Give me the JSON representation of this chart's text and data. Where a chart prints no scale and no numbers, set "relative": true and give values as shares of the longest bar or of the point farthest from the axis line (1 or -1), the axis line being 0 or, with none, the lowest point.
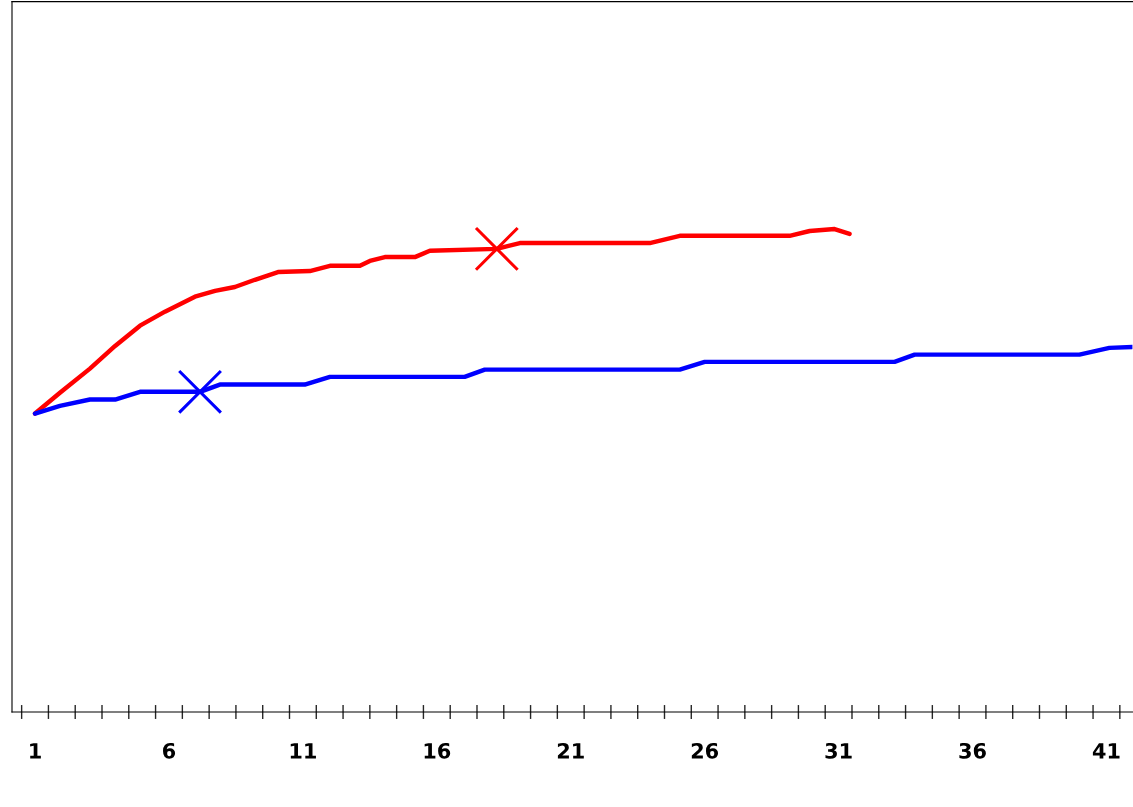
{
  "chart_data": {
    "type": "line",
    "relative": true,
    "grid": false,
    "marker": "none",
    "xlim": [
      0.14,
      41.97
    ],
    "xticks": [
      {
        "value": 0.5,
        "label": null
      },
      {
        "value": 1,
        "label": "1"
      },
      {
        "value": 1.5,
        "label": null
      },
      {
        "value": 2.5,
        "label": null
      },
      {
        "value": 3.5,
        "label": null
      },
      {
        "value": 4.5,
        "label": null
      },
      {
        "value": 5.5,
        "label": null
      },
      {
        "value": 6,
        "label": "6"
      },
      {
        "value": 6.5,
        "label": null
      },
      {
        "value": 7.5,
        "label": null
      },
      {
        "value": 8.5,
        "label": null
      },
      {
        "value": 9.5,
        "label": null
      },
      {
        "value": 10.5,
        "label": null
      },
      {
        "value": 11,
        "label": "11"
      },
      {
        "value": 11.5,
        "label": null
      },
      {
        "value": 12.5,
        "label": null
      },
      {
        "value": 13.5,
        "label": null
      },
      {
        "value": 14.5,
        "label": null
      },
      {
        "value": 15.5,
        "label": null
      },
      {
        "value": 16,
        "label": "16"
      },
      {
        "value": 16.5,
        "label": null
      },
      {
        "value": 17.5,
        "label": null
      },
      {
        "value": 18.5,
        "label": null
      },
      {
        "value": 19.5,
        "label": null
      },
      {
        "value": 20.5,
        "label": null
      },
      {
        "value": 21,
        "label": "21"
      },
      {
        "value": 21.5,
        "label": null
      },
      {
        "value": 22.5,
        "label": null
      },
      {
        "value": 23.5,
        "label": null
      },
      {
        "value": 24.5,
        "label": null
      },
      {
        "value": 25.5,
        "label": null
      },
      {
        "value": 26,
        "label": "26"
      },
      {
        "value": 26.5,
        "label": null
      },
      {
        "value": 27.5,
        "label": null
      },
      {
        "value": 28.5,
        "label": null
      },
      {
        "value": 29.5,
        "label": null
      },
      {
        "value": 30.5,
        "label": null
      },
      {
        "value": 31,
        "label": "31"
      },
      {
        "value": 31.5,
        "label": null
      },
      {
        "value": 32.5,
        "label": null
      },
      {
        "value": 33.5,
        "label": null
      },
      {
        "value": 34.5,
        "label": null
      },
      {
        "value": 35.5,
        "label": null
      },
      {
        "value": 36,
        "label": "36"
      },
      {
        "value": 36.5,
        "label": null
      },
      {
        "value": 37.5,
        "label": null
      },
      {
        "value": 38.5,
        "label": null
      },
      {
        "value": 39.5,
        "label": null
      },
      {
        "value": 40.5,
        "label": null
      },
      {
        "value": 41,
        "label": "41"
      },
      {
        "value": 41.5,
        "label": null
      }
    ],
    "series": [
      {
        "color": "#ff0000",
        "x": [
          1,
          1.93,
          3.05,
          3.99,
          4.92,
          5.85,
          6.97,
          7.72,
          8.46,
          9.21,
          10.07,
          11.26,
          12.01,
          13.13,
          13.5,
          14.06,
          15.18,
          15.74,
          18.24,
          19.1,
          23.95,
          25.07,
          29.17,
          29.92,
          30.85,
          31.41
        ],
        "values": [
          0.618,
          0.661,
          0.711,
          0.758,
          0.8,
          0.829,
          0.86,
          0.872,
          0.88,
          0.895,
          0.911,
          0.913,
          0.924,
          0.924,
          0.934,
          0.942,
          0.942,
          0.955,
          0.959,
          0.971,
          0.971,
          0.986,
          0.986,
          0.996,
          1.0,
          0.99
        ]
      },
      {
        "color": "#0000ff",
        "x": [
          1,
          1.93,
          3.05,
          3.99,
          4.92,
          7.16,
          7.9,
          11.07,
          12.01,
          17.04,
          17.79,
          25.07,
          26.0,
          33.09,
          33.84,
          39.99,
          41.11,
          41.97
        ],
        "values": [
          0.618,
          0.634,
          0.647,
          0.647,
          0.663,
          0.663,
          0.678,
          0.678,
          0.694,
          0.694,
          0.709,
          0.709,
          0.725,
          0.725,
          0.74,
          0.74,
          0.754,
          0.756
        ]
      },
      {
        "type": "scatter",
        "marker": "cross",
        "color": "#ff0000",
        "x": [
          18.24
        ],
        "values": [
          0.959
        ]
      },
      {
        "type": "scatter",
        "marker": "cross",
        "color": "#0000ff",
        "x": [
          7.16
        ],
        "values": [
          0.663
        ]
      }
    ]
  }
}
